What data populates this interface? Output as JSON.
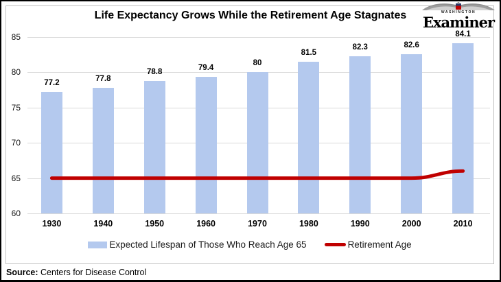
{
  "chart_data": {
    "type": "bar",
    "title": "Life Expectancy Grows While the Retirement Age Stagnates",
    "categories": [
      "1930",
      "1940",
      "1950",
      "1960",
      "1970",
      "1980",
      "1990",
      "2000",
      "2010"
    ],
    "series": [
      {
        "name": "Expected Lifespan of Those Who Reach Age 65",
        "type": "bar",
        "color": "#b4c9ee",
        "values": [
          77.2,
          77.8,
          78.8,
          79.4,
          80,
          81.5,
          82.3,
          82.6,
          84.1
        ]
      },
      {
        "name": "Retirement Age",
        "type": "line",
        "color": "#c00000",
        "values": [
          65,
          65,
          65,
          65,
          65,
          65,
          65,
          65,
          66
        ]
      }
    ],
    "ylim": [
      60,
      85
    ],
    "yticks": [
      60,
      65,
      70,
      75,
      80,
      85
    ],
    "grid": true,
    "legend_position": "bottom",
    "data_labels": true
  },
  "logo": {
    "city": "WASHINGTON",
    "brand": "Examiner"
  },
  "footer": {
    "source_label": "Source:",
    "source_text": "Centers for Disease Control"
  },
  "colors": {
    "bar": "#b4c9ee",
    "line": "#c00000",
    "grid": "#d9d9d9",
    "panel_border": "#c0c0c0"
  }
}
